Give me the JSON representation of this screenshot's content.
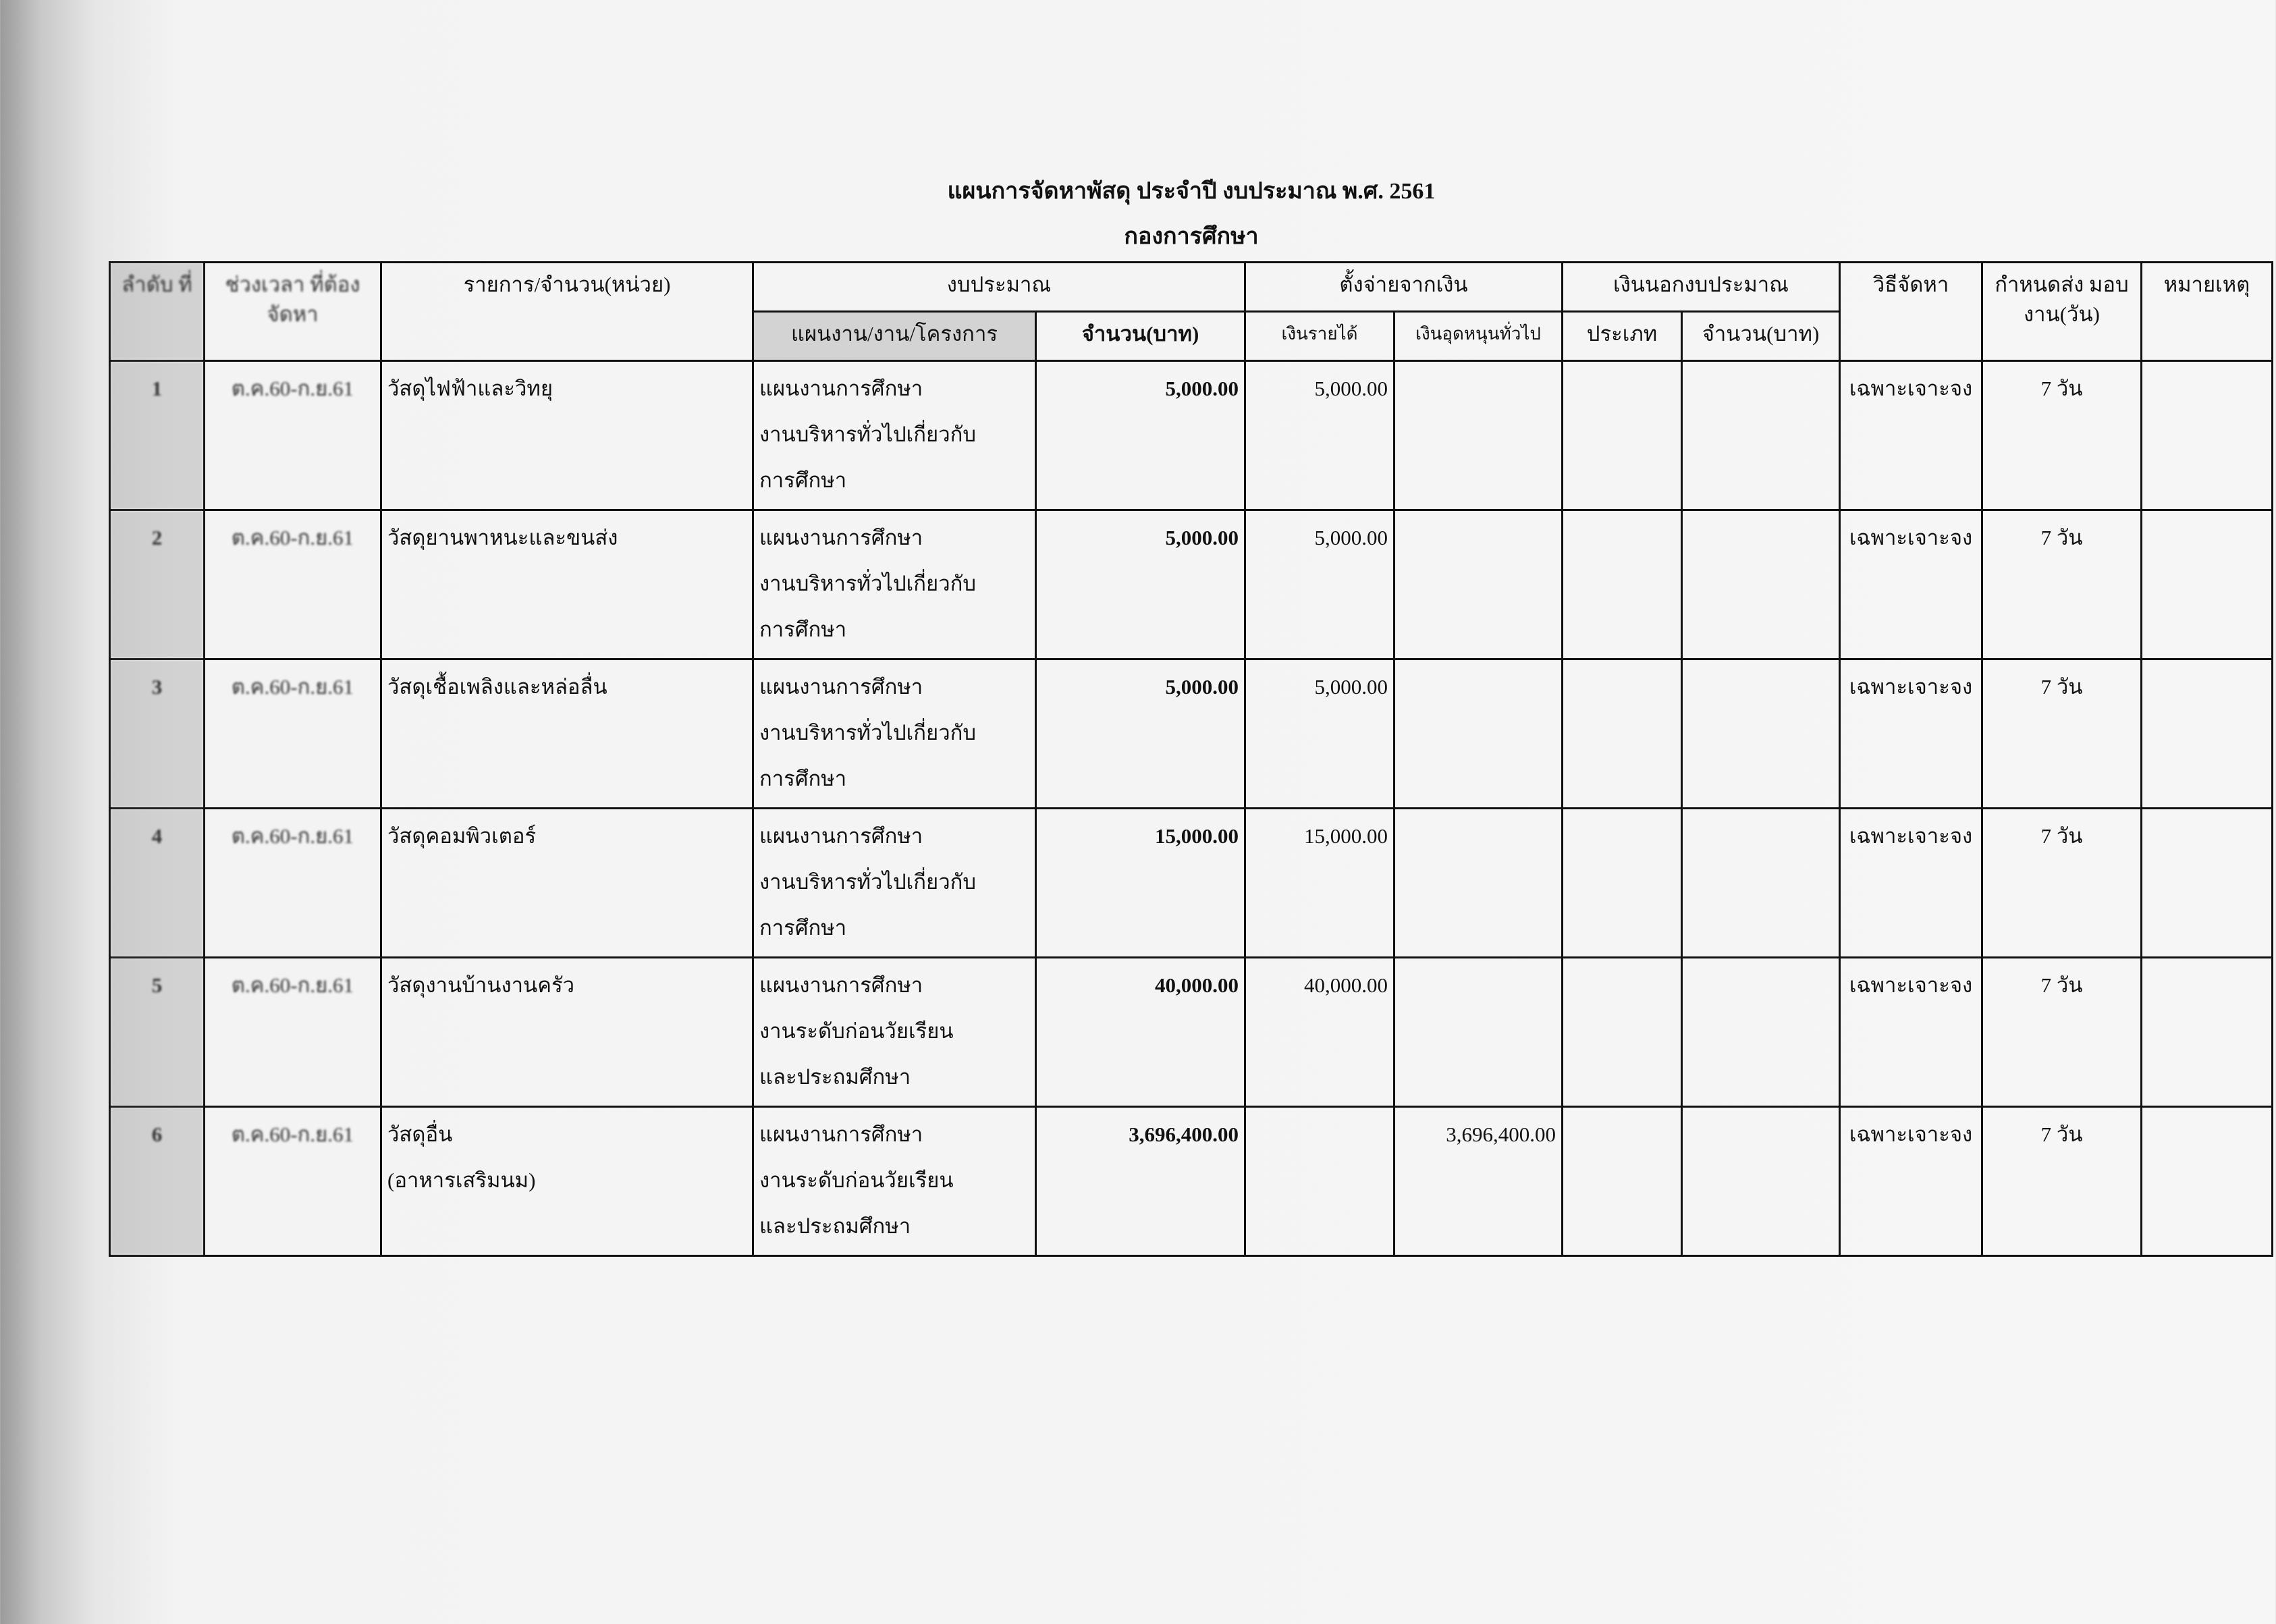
{
  "title": "แผนการจัดหาพัสดุ ประจำปี งบประมาณ พ.ศ. 2561",
  "subtitle": "กองการศึกษา",
  "headers": {
    "no": "ลำดับ ที่",
    "period": "ช่วงเวลา ที่ต้องจัดหา",
    "item": "รายการ/จำนวน(หน่วย)",
    "budget": "งบประมาณ",
    "plan": "แผนงาน/งาน/โครงการ",
    "amount": "จำนวน(บาท)",
    "source": "ตั้งจ่ายจากเงิน",
    "income": "เงินรายได้",
    "subsidy": "เงินอุดหนุนทั่วไป",
    "offbudget": "เงินนอกงบประมาณ",
    "type": "ประเภท",
    "off_amount": "จำนวน(บาท)",
    "method": "วิธีจัดหา",
    "delivery": "กำหนดส่ง มอบงาน(วัน)",
    "remark": "หมายเหตุ"
  },
  "rows": [
    {
      "no": "1",
      "period": "ต.ค.60-ก.ย.61",
      "item": "วัสดุไฟฟ้าและวิทยุ",
      "item2": "",
      "plan": [
        "แผนงานการศึกษา",
        "งานบริหารทั่วไปเกี่ยวกับ",
        "การศึกษา"
      ],
      "amount": "5,000.00",
      "income": "5,000.00",
      "subsidy": "",
      "method": "เฉพาะเจาะจง",
      "delivery": "7 วัน"
    },
    {
      "no": "2",
      "period": "ต.ค.60-ก.ย.61",
      "item": "วัสดุยานพาหนะและขนส่ง",
      "item2": "",
      "plan": [
        "แผนงานการศึกษา",
        "งานบริหารทั่วไปเกี่ยวกับ",
        "การศึกษา"
      ],
      "amount": "5,000.00",
      "income": "5,000.00",
      "subsidy": "",
      "method": "เฉพาะเจาะจง",
      "delivery": "7 วัน"
    },
    {
      "no": "3",
      "period": "ต.ค.60-ก.ย.61",
      "item": "วัสดุเชื้อเพลิงและหล่อลื่น",
      "item2": "",
      "plan": [
        "แผนงานการศึกษา",
        "งานบริหารทั่วไปเกี่ยวกับ",
        "การศึกษา"
      ],
      "amount": "5,000.00",
      "income": "5,000.00",
      "subsidy": "",
      "method": "เฉพาะเจาะจง",
      "delivery": "7 วัน"
    },
    {
      "no": "4",
      "period": "ต.ค.60-ก.ย.61",
      "item": "วัสดุคอมพิวเตอร์",
      "item2": "",
      "plan": [
        "แผนงานการศึกษา",
        "งานบริหารทั่วไปเกี่ยวกับ",
        "การศึกษา"
      ],
      "amount": "15,000.00",
      "income": "15,000.00",
      "subsidy": "",
      "method": "เฉพาะเจาะจง",
      "delivery": "7 วัน"
    },
    {
      "no": "5",
      "period": "ต.ค.60-ก.ย.61",
      "item": "วัสดุงานบ้านงานครัว",
      "item2": "",
      "plan": [
        "แผนงานการศึกษา",
        "งานระดับก่อนวัยเรียน",
        "และประถมศึกษา"
      ],
      "amount": "40,000.00",
      "income": "40,000.00",
      "subsidy": "",
      "method": "เฉพาะเจาะจง",
      "delivery": "7 วัน"
    },
    {
      "no": "6",
      "period": "ต.ค.60-ก.ย.61",
      "item": "วัสดุอื่น",
      "item2": "(อาหารเสริมนม)",
      "plan": [
        "แผนงานการศึกษา",
        "งานระดับก่อนวัยเรียน",
        "และประถมศึกษา"
      ],
      "amount": "3,696,400.00",
      "income": "",
      "subsidy": "3,696,400.00",
      "method": "เฉพาะเจาะจง",
      "delivery": "7 วัน"
    }
  ]
}
